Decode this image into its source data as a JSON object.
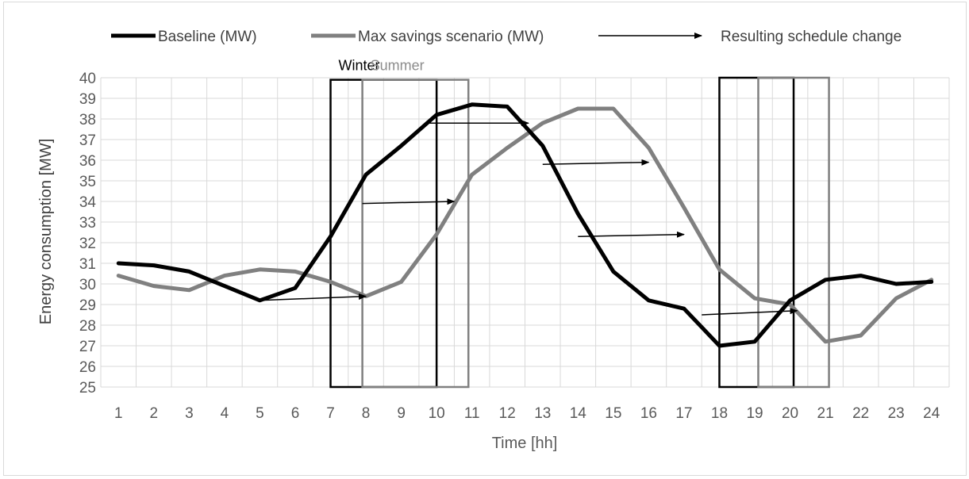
{
  "chart_data": {
    "type": "line",
    "xlabel": "Time [hh]",
    "ylabel": "Energy consumption [MW]",
    "ylim": [
      25,
      40
    ],
    "yticks": [
      25,
      26,
      27,
      28,
      29,
      30,
      31,
      32,
      33,
      34,
      35,
      36,
      37,
      38,
      39,
      40
    ],
    "categories": [
      "1",
      "2",
      "3",
      "4",
      "5",
      "6",
      "7",
      "8",
      "9",
      "10",
      "11",
      "12",
      "13",
      "14",
      "15",
      "16",
      "17",
      "18",
      "19",
      "20",
      "21",
      "22",
      "23",
      "24"
    ],
    "grid": true,
    "legend_position": "top",
    "series": [
      {
        "name": "Baseline (MW)",
        "color": "#000000",
        "values": [
          31.0,
          30.9,
          30.6,
          29.9,
          29.2,
          29.8,
          32.3,
          35.3,
          36.7,
          38.2,
          38.7,
          38.6,
          36.7,
          33.4,
          30.6,
          29.2,
          28.8,
          27.0,
          27.2,
          29.2,
          30.2,
          30.4,
          30.0,
          30.1
        ]
      },
      {
        "name": "Max savings scenario (MW)",
        "color": "#808080",
        "values": [
          30.4,
          29.9,
          29.7,
          30.4,
          30.7,
          30.6,
          30.1,
          29.4,
          30.1,
          32.4,
          35.3,
          36.6,
          37.8,
          38.5,
          38.5,
          36.6,
          33.7,
          30.7,
          29.3,
          29.0,
          27.2,
          27.5,
          29.3,
          30.2
        ]
      }
    ],
    "arrows_label": "Resulting schedule change",
    "arrows": [
      {
        "x1": 5,
        "y1": 29.2,
        "x2": 8,
        "y2": 29.4
      },
      {
        "x1": 7.9,
        "y1": 33.9,
        "x2": 10.5,
        "y2": 34.0
      },
      {
        "x1": 9.8,
        "y1": 37.8,
        "x2": 12.6,
        "y2": 37.8
      },
      {
        "x1": 13,
        "y1": 35.8,
        "x2": 16,
        "y2": 35.9
      },
      {
        "x1": 14,
        "y1": 32.3,
        "x2": 17,
        "y2": 32.4
      },
      {
        "x1": 17.5,
        "y1": 28.5,
        "x2": 20.2,
        "y2": 28.7
      }
    ],
    "boxes": [
      {
        "label": "Winter",
        "color": "#000000",
        "x_from": 7,
        "x_to": 10,
        "y_from": 25,
        "y_to": 39.9
      },
      {
        "label": "Summer",
        "color": "#808080",
        "x_from": 7.9,
        "x_to": 10.9,
        "y_from": 25,
        "y_to": 39.9
      },
      {
        "label": "",
        "color": "#000000",
        "x_from": 18,
        "x_to": 20.1,
        "y_from": 25,
        "y_to": 40
      },
      {
        "label": "",
        "color": "#808080",
        "x_from": 19.1,
        "x_to": 21.1,
        "y_from": 25,
        "y_to": 40
      }
    ]
  }
}
